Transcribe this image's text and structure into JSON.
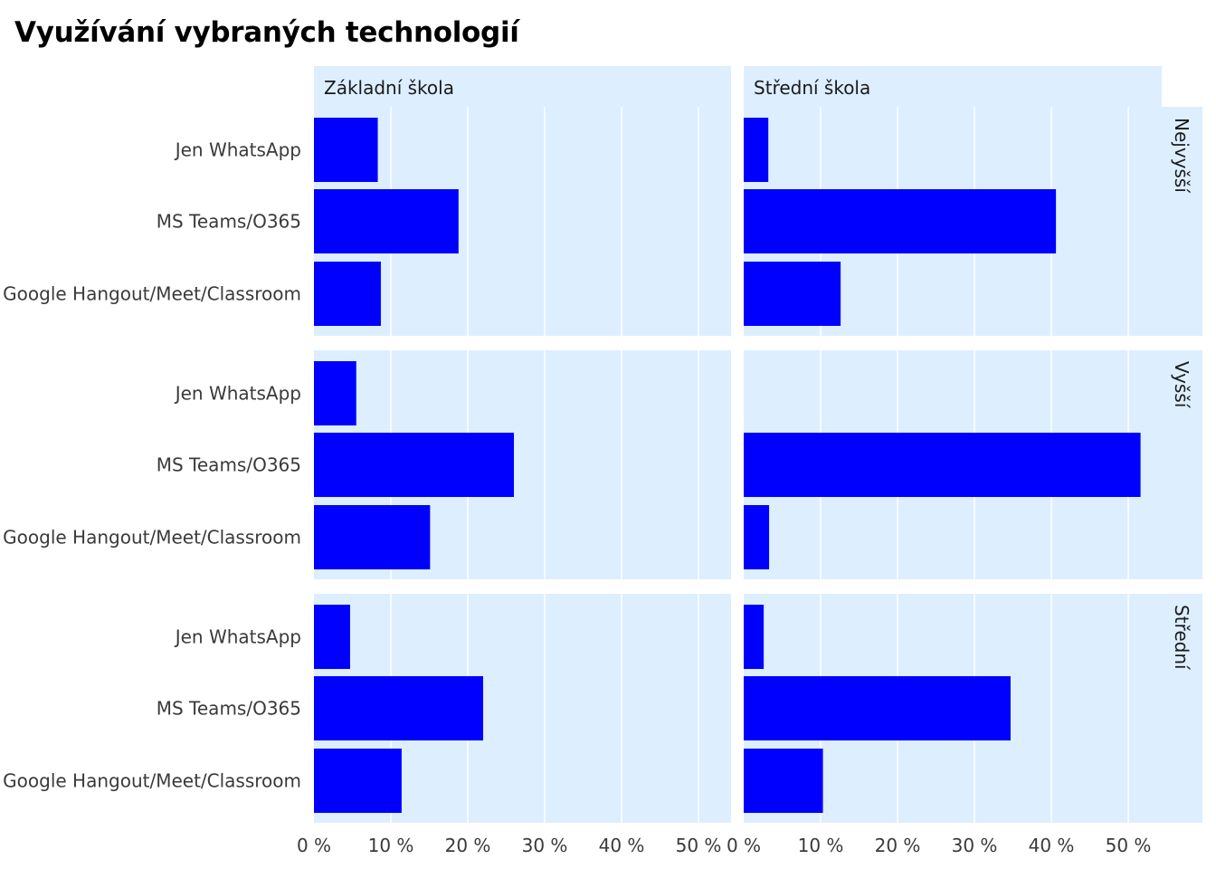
{
  "chart_data": {
    "type": "bar",
    "orientation": "horizontal",
    "title": "Využívání vybraných technologií",
    "facet_columns": [
      "Základní škola",
      "Střední škola"
    ],
    "facet_rows": [
      "Nejvyšší",
      "Vyšší",
      "Střední"
    ],
    "categories": [
      "Jen WhatsApp",
      "MS Teams/O365",
      "Google Hangout/Meet/Classroom"
    ],
    "x_ticks": [
      0,
      10,
      20,
      30,
      40,
      50
    ],
    "x_tick_labels": [
      "0 %",
      "10 %",
      "20 %",
      "30 %",
      "40 %",
      "50 %"
    ],
    "xlim": [
      0,
      59
    ],
    "bar_color": "#0000ff",
    "panel_background": "#ddeeff",
    "grid": true,
    "panels": [
      {
        "row": "Nejvyšší",
        "col": "Základní škola",
        "values": [
          8.3,
          18.8,
          8.7
        ]
      },
      {
        "row": "Nejvyšší",
        "col": "Střední škola",
        "values": [
          3.2,
          40.6,
          12.6
        ]
      },
      {
        "row": "Vyšší",
        "col": "Základní škola",
        "values": [
          5.5,
          26.0,
          15.1
        ]
      },
      {
        "row": "Vyšší",
        "col": "Střední škola",
        "values": [
          0,
          51.6,
          3.3
        ]
      },
      {
        "row": "Střední",
        "col": "Základní škola",
        "values": [
          4.7,
          22.0,
          11.4
        ]
      },
      {
        "row": "Střední",
        "col": "Střední škola",
        "values": [
          2.6,
          34.7,
          10.3
        ]
      }
    ]
  }
}
